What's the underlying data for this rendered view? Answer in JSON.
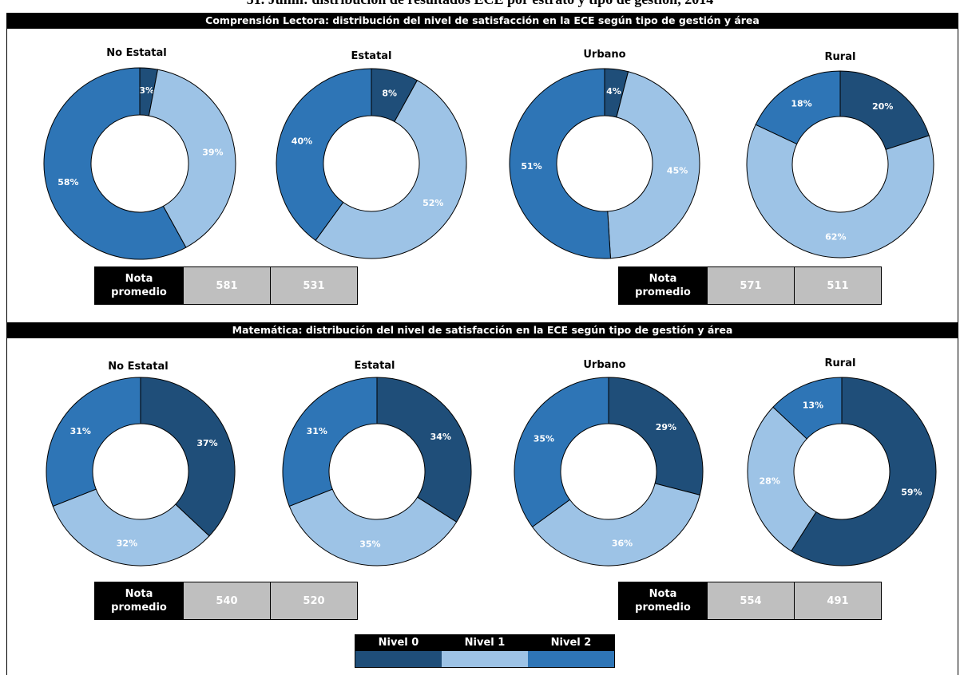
{
  "page": {
    "title": "51. Junín: distribución de resultados ECE por estrato y tipo de gestión, 2014",
    "sections": [
      {
        "title": "Comprensión Lectora: distribución del nivel de satisfacción en la ECE según tipo de gestión y área"
      },
      {
        "title": "Matemática: distribución del nivel de satisfacción en la ECE según tipo de gestión y área"
      }
    ]
  },
  "colors": {
    "nivel_0": "#1f4e79",
    "nivel_1": "#9dc3e6",
    "nivel_2": "#2e75b6"
  },
  "score_tables": [
    {
      "label": "Nota\npromedio",
      "values": [
        "581",
        "531"
      ]
    },
    {
      "label": "Nota\npromedio",
      "values": [
        "571",
        "511"
      ]
    },
    {
      "label": "Nota\npromedio",
      "values": [
        "540",
        "520"
      ]
    },
    {
      "label": "Nota\npromedio",
      "values": [
        "554",
        "491"
      ]
    }
  ],
  "legend": {
    "items": [
      {
        "label": "Nivel 0",
        "color": "#1f4e79"
      },
      {
        "label": "Nivel 1",
        "color": "#9dc3e6"
      },
      {
        "label": "Nivel 2",
        "color": "#2e75b6"
      }
    ]
  },
  "chart_data": [
    {
      "type": "pie",
      "section": "Comprensión Lectora",
      "title": "No Estatal",
      "categories": [
        "Nivel 0",
        "Nivel 1",
        "Nivel 2"
      ],
      "values": [
        3,
        39,
        58
      ],
      "labels": [
        "3%",
        "39%",
        "58%"
      ]
    },
    {
      "type": "pie",
      "section": "Comprensión Lectora",
      "title": "Estatal",
      "categories": [
        "Nivel 0",
        "Nivel 1",
        "Nivel 2"
      ],
      "values": [
        8,
        52,
        40
      ],
      "labels": [
        "8%",
        "52%",
        "40%"
      ]
    },
    {
      "type": "pie",
      "section": "Comprensión Lectora",
      "title": "Urbano",
      "categories": [
        "Nivel 0",
        "Nivel 1",
        "Nivel 2"
      ],
      "values": [
        4,
        45,
        51
      ],
      "labels": [
        "4%",
        "45%",
        "51%"
      ]
    },
    {
      "type": "pie",
      "section": "Comprensión Lectora",
      "title": "Rural",
      "categories": [
        "Nivel 0",
        "Nivel 1",
        "Nivel 2"
      ],
      "values": [
        20,
        62,
        18
      ],
      "labels": [
        "20%",
        "62%",
        "18%"
      ]
    },
    {
      "type": "pie",
      "section": "Matemática",
      "title": "No Estatal",
      "categories": [
        "Nivel 0",
        "Nivel 1",
        "Nivel 2"
      ],
      "values": [
        37,
        32,
        31
      ],
      "labels": [
        "37%",
        "32%",
        "31%"
      ]
    },
    {
      "type": "pie",
      "section": "Matemática",
      "title": "Estatal",
      "categories": [
        "Nivel 0",
        "Nivel 1",
        "Nivel 2"
      ],
      "values": [
        34,
        35,
        31
      ],
      "labels": [
        "34%",
        "35%",
        "31%"
      ]
    },
    {
      "type": "pie",
      "section": "Matemática",
      "title": "Urbano",
      "categories": [
        "Nivel 0",
        "Nivel 1",
        "Nivel 2"
      ],
      "values": [
        29,
        36,
        35
      ],
      "labels": [
        "29%",
        "36%",
        "35%"
      ]
    },
    {
      "type": "pie",
      "section": "Matemática",
      "title": "Rural",
      "categories": [
        "Nivel 0",
        "Nivel 1",
        "Nivel 2"
      ],
      "values": [
        59,
        28,
        13
      ],
      "labels": [
        "59%",
        "28%",
        "13%"
      ]
    }
  ]
}
